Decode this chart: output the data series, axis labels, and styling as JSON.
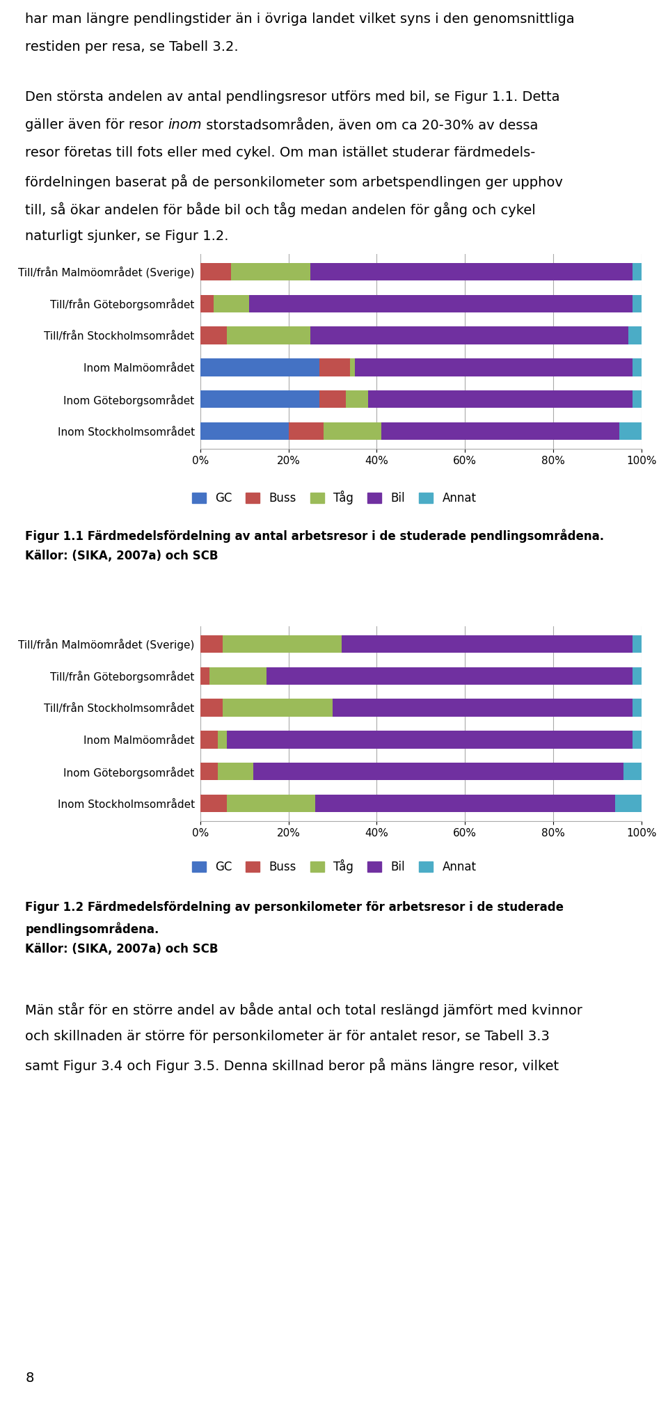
{
  "text_para1_line1": "har man längre pendlingstider än i övriga landet vilket syns i den genomsnittliga",
  "text_para1_line2": "restiden per resa, se Tabell 3.2.",
  "text_para2_parts": [
    {
      "text": "Den största andelen av antal pendlingsresor utförs med bil, se Figur 1.1. Detta\ngäller även för resor ",
      "italic": false
    },
    {
      "text": "inom",
      "italic": true
    },
    {
      "text": " storstadsområden, även om ca 20-30% av dessa\nresor företas till fots eller med cykel. Om man istället studerar färdmedels-\nfördelningen baserat på de personkilometer som arbetspendlingen ger upphov\ntill, så ökar andelen för både bil och tåg medan andelen för gång och cykel\nnaturligt sjunker, se Figur 1.2.",
      "italic": false
    }
  ],
  "chart1": {
    "categories": [
      "Till/från Malmöområdet (Sverige)",
      "Till/från Göteborgsområdet",
      "Till/från Stockholmsområdet",
      "Inom Malmöområdet",
      "Inom Göteborgsområdet",
      "Inom Stockholmsområdet"
    ],
    "data": {
      "GC": [
        0.0,
        0.0,
        0.0,
        0.27,
        0.27,
        0.2
      ],
      "Buss": [
        0.07,
        0.03,
        0.06,
        0.07,
        0.06,
        0.08
      ],
      "Tåg": [
        0.18,
        0.08,
        0.19,
        0.01,
        0.05,
        0.13
      ],
      "Bil": [
        0.73,
        0.87,
        0.72,
        0.63,
        0.6,
        0.54
      ],
      "Annat": [
        0.02,
        0.02,
        0.03,
        0.02,
        0.02,
        0.05
      ]
    },
    "caption_line1": "Figur 1.1 Färdmedelsfördelning av antal arbetsresor i de studerade pendlingsområdena.",
    "caption_line2": "Källor: (SIKA, 2007a) och SCB"
  },
  "chart2": {
    "categories": [
      "Till/från Malmöområdet (Sverige)",
      "Till/från Göteborgsområdet",
      "Till/från Stockholmsområdet",
      "Inom Malmöområdet",
      "Inom Göteborgsområdet",
      "Inom Stockholmsområdet"
    ],
    "data": {
      "GC": [
        0.0,
        0.0,
        0.0,
        0.0,
        0.0,
        0.0
      ],
      "Buss": [
        0.05,
        0.02,
        0.05,
        0.04,
        0.04,
        0.06
      ],
      "Tåg": [
        0.27,
        0.13,
        0.25,
        0.02,
        0.08,
        0.2
      ],
      "Bil": [
        0.66,
        0.83,
        0.68,
        0.92,
        0.84,
        0.68
      ],
      "Annat": [
        0.02,
        0.02,
        0.02,
        0.02,
        0.04,
        0.06
      ]
    },
    "caption_line1": "Figur 1.2 Färdmedelsfördelning av personkilometer för arbetsresor i de studerade",
    "caption_line2": "pendlingsområdena.",
    "caption_line3": "Källor: (SIKA, 2007a) och SCB"
  },
  "text_bottom": "Män står för en större andel av både antal och total reslängd jämfört med kvinnor\noch skillnaden är större för personkilometer är för antalet resor, se Tabell 3.3\nsamt Figur 3.4 och Figur 3.5. Denna skillnad beror på mäns längre resor, vilket",
  "colors": {
    "GC": "#4472C4",
    "Buss": "#C0504D",
    "Tåg": "#9BBB59",
    "Bil": "#7030A0",
    "Annat": "#4BACC6"
  },
  "legend_order": [
    "GC",
    "Buss",
    "Tåg",
    "Bil",
    "Annat"
  ],
  "page_number": "8",
  "background": "#FFFFFF"
}
